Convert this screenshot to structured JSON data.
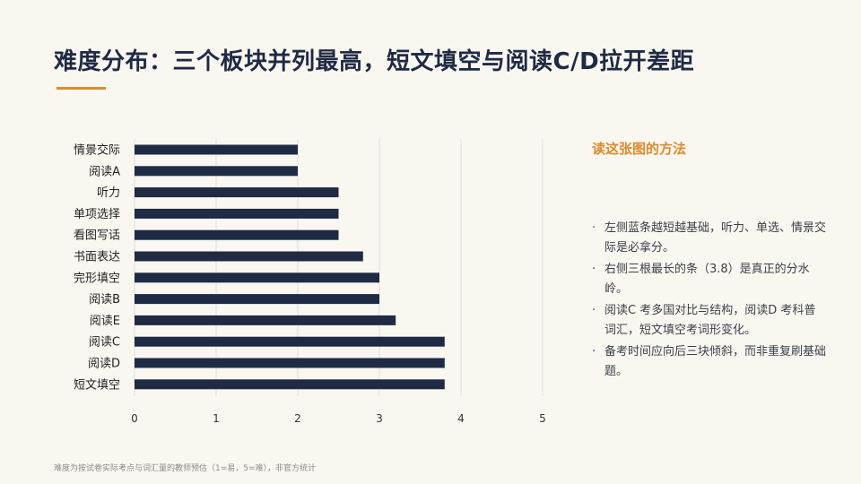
{
  "header": {
    "title": "难度分布：三个板块并列最高，短文填空与阅读C/D拉开差距"
  },
  "side_panel": {
    "heading": "读这张图的方法",
    "notes": [
      "左侧蓝条越短越基础，听力、单选、情景交际是必拿分。",
      "右侧三根最长的条（3.8）是真正的分水岭。",
      "阅读C 考多国对比与结构，阅读D 考科普词汇，短文填空考词形变化。",
      "备考时间应向后三块倾斜，而非重复刷基础题。"
    ]
  },
  "footnote": "难度为按试卷实际考点与词汇量的教师预估（1=易，5=难），非官方统计",
  "colors": {
    "bar": "#1f2a44",
    "accent": "#e08a2b",
    "grid": "#dcdfe6"
  },
  "chart_data": {
    "type": "bar",
    "orientation": "horizontal",
    "categories": [
      "情景交际",
      "阅读A",
      "听力",
      "单项选择",
      "看图写话",
      "书面表达",
      "完形填空",
      "阅读B",
      "阅读E",
      "阅读C",
      "阅读D",
      "短文填空"
    ],
    "values": [
      2.0,
      2.0,
      2.5,
      2.5,
      2.5,
      2.8,
      3.0,
      3.0,
      3.2,
      3.8,
      3.8,
      3.8
    ],
    "xlim": [
      0,
      5
    ],
    "xticks": [
      0,
      1,
      2,
      3,
      4,
      5
    ],
    "title": "",
    "xlabel": "",
    "ylabel": "",
    "grid": "vertical",
    "legend": "none"
  }
}
